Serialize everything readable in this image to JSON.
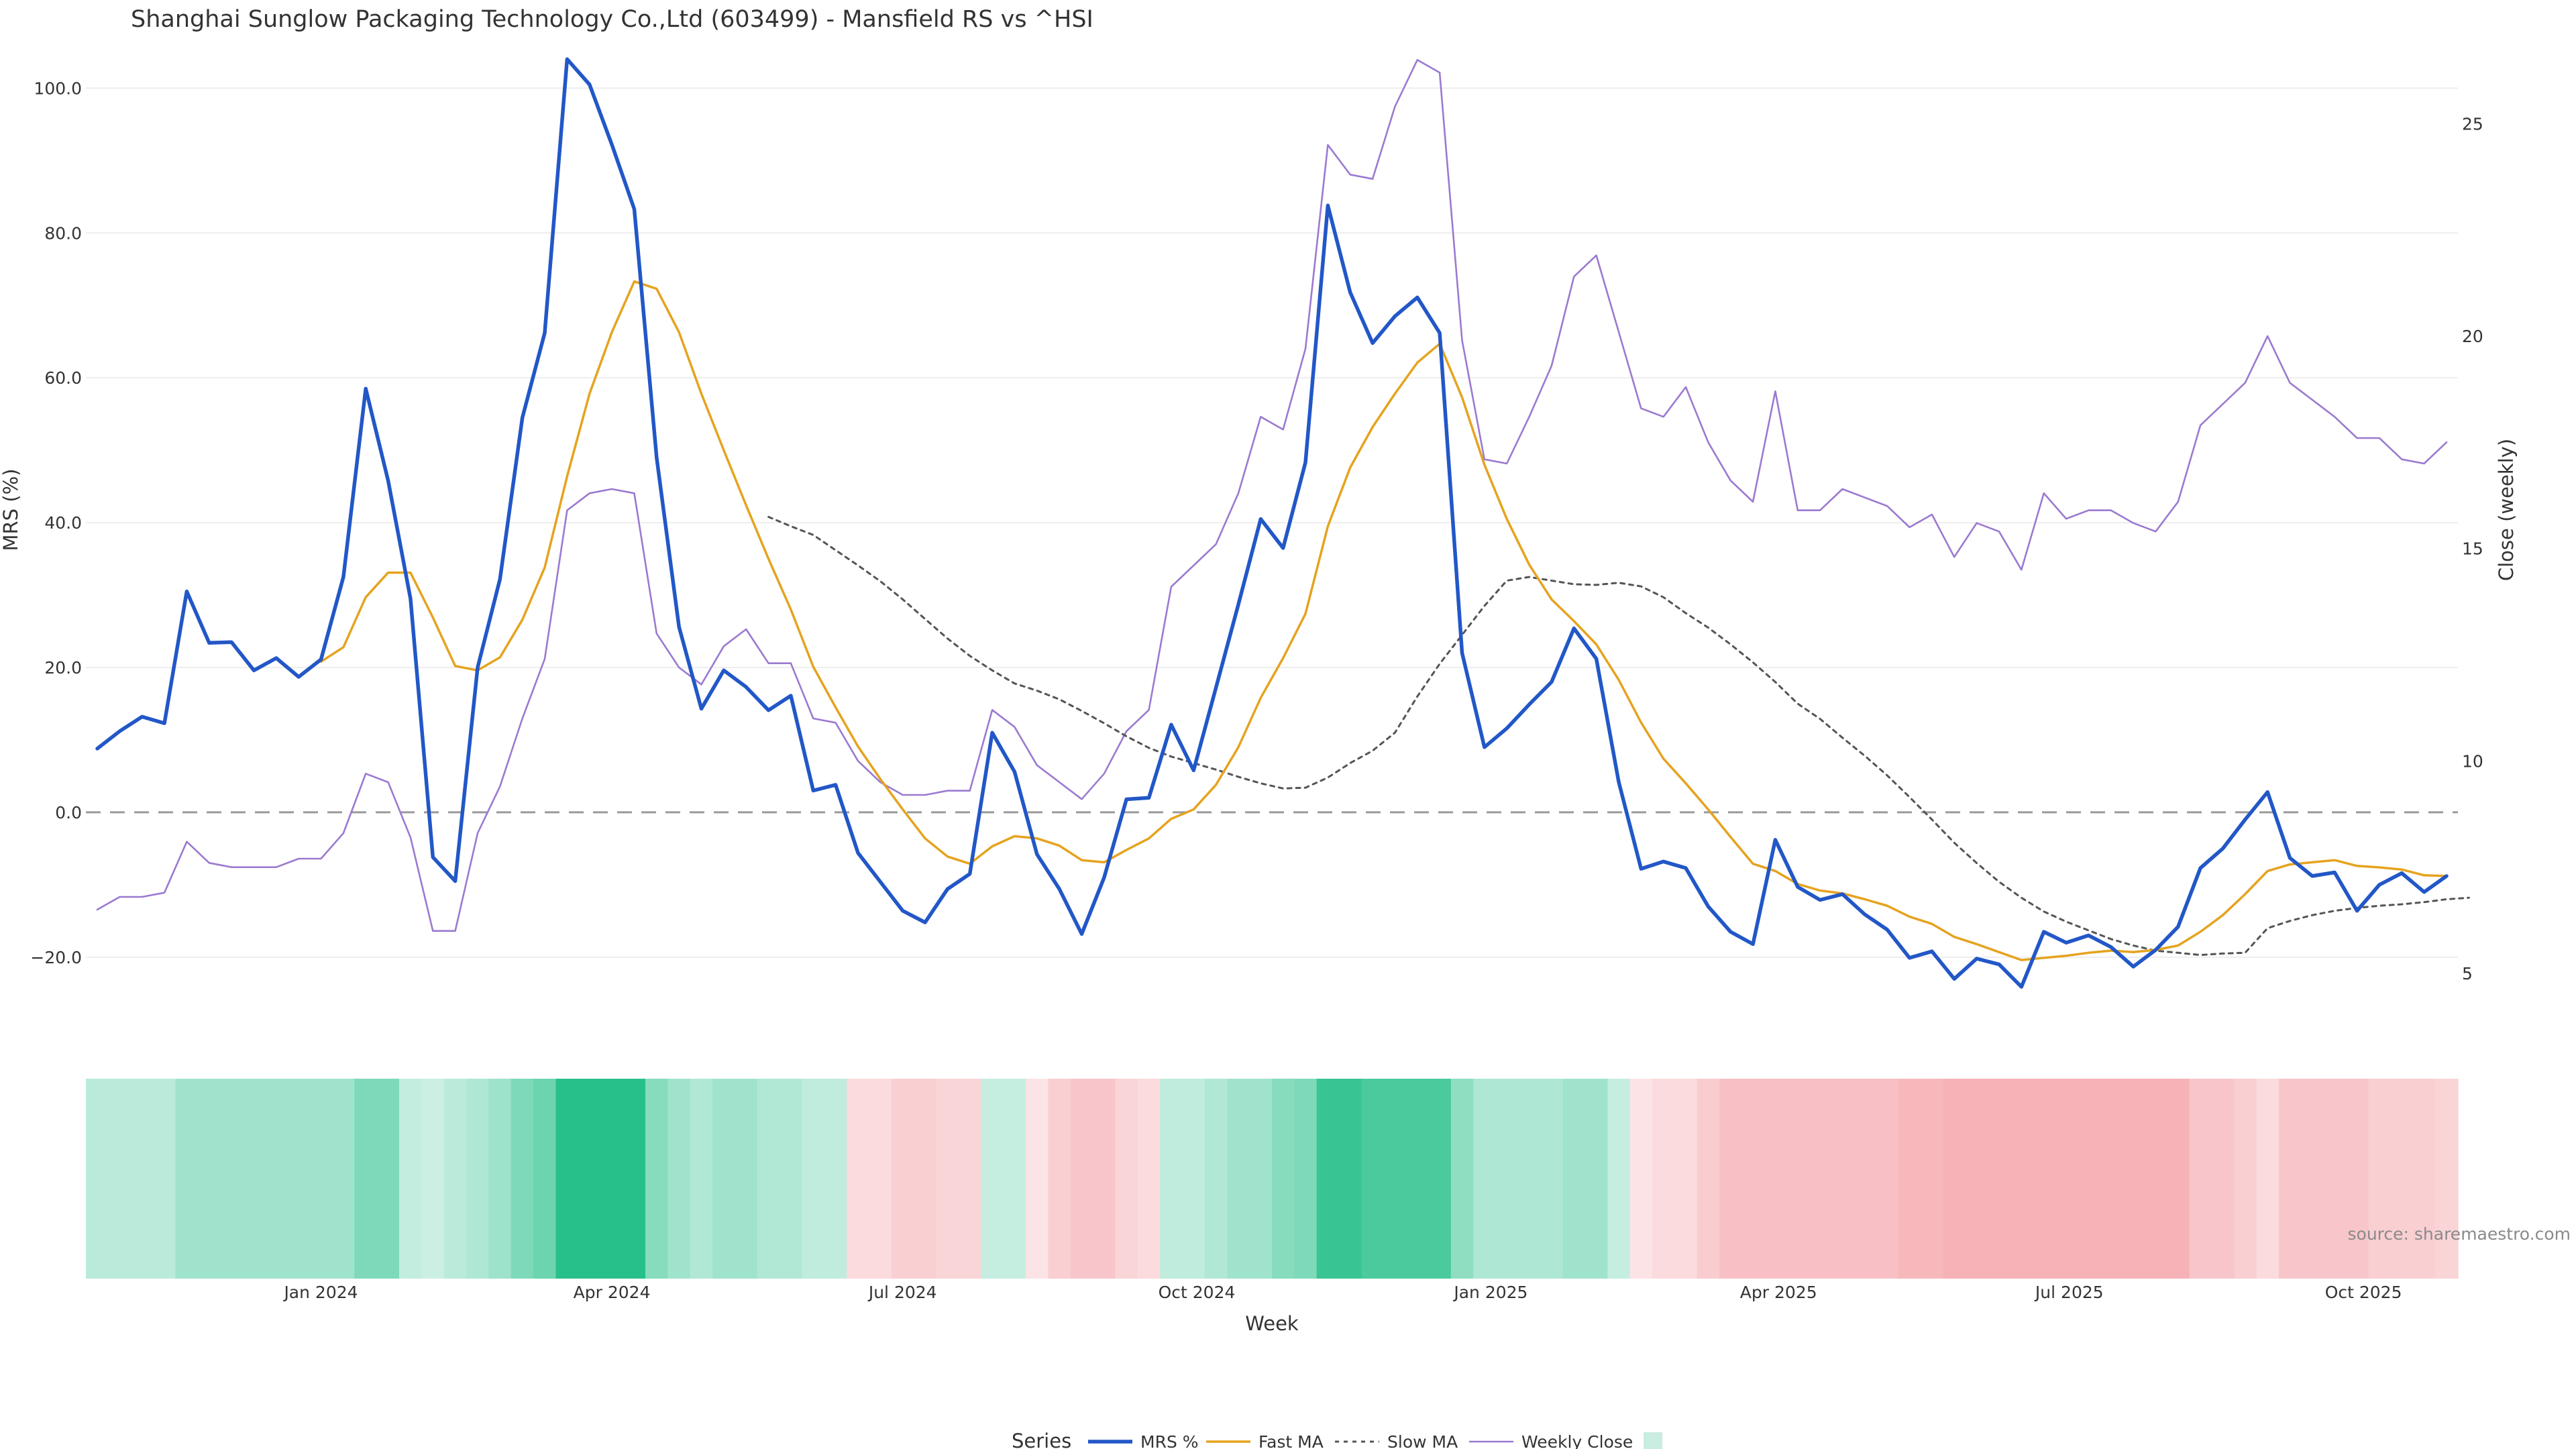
{
  "chart_data": {
    "type": "line",
    "title": "Shanghai Sunglow Packaging Technology Co.,Ltd (603499) - Mansfield RS vs ^HSI",
    "xlabel": "Week",
    "ylabel_left": "MRS (%)",
    "ylabel_right": "Close (weekly)",
    "source": "source: sharemaestro.com",
    "legend_title": "Series",
    "legend_position": "bottom-center",
    "x_start": "2023-10-23",
    "x_step_days": 7,
    "x_ticks": [
      "Jan 2024",
      "Apr 2024",
      "Jul 2024",
      "Oct 2024",
      "Jan 2025",
      "Apr 2025",
      "Jul 2025",
      "Oct 2025"
    ],
    "y_left": {
      "range": [
        -24,
        108
      ],
      "ticks": [
        "100.0",
        "80.0",
        "60.0",
        "40.0",
        "20.0",
        "0.0",
        "−20.0"
      ],
      "tick_values": [
        100,
        80,
        60,
        40,
        20,
        0,
        -20
      ]
    },
    "y_right": {
      "range": [
        4.7,
        27.2
      ],
      "ticks": [
        "5",
        "10",
        "15",
        "20",
        "25"
      ],
      "tick_values": [
        5,
        10,
        15,
        20,
        25
      ]
    },
    "zero_line": true,
    "grid": true,
    "colors": {
      "mrs": "#2257c7",
      "fast": "#e5a31f",
      "slow": "#555555",
      "close": "#9b7ad0",
      "pos": "#27c08a",
      "neg": "#f5a9ae"
    },
    "series": [
      {
        "name": "MRS %",
        "axis": "left",
        "style": "solid-thick",
        "values": [
          8.8,
          11.2,
          13.2,
          12.3,
          30.5,
          23.4,
          23.5,
          19.6,
          21.3,
          18.7,
          21.1,
          32.5,
          58.5,
          45.8,
          29.5,
          -6.2,
          -9.5,
          20.0,
          32.2,
          54.5,
          66.2,
          104.0,
          100.5,
          92.2,
          83.3,
          49.0,
          25.6,
          14.3,
          19.6,
          17.3,
          14.1,
          16.1,
          3.0,
          3.8,
          -5.6,
          -9.6,
          -13.6,
          -15.2,
          -10.6,
          -8.5,
          11.0,
          5.6,
          -5.8,
          -10.6,
          -16.8,
          -9.0,
          1.8,
          2.0,
          12.1,
          5.8,
          17.2,
          28.7,
          40.5,
          36.5,
          48.3,
          83.8,
          71.8,
          64.8,
          68.5,
          71.1,
          66.2,
          22.0,
          9.0,
          11.6,
          14.9,
          18.0,
          25.4,
          21.2,
          4.2,
          -7.8,
          -6.8,
          -7.7,
          -13.0,
          -16.5,
          -18.2,
          -3.8,
          -10.3,
          -12.1,
          -11.3,
          -14.1,
          -16.2,
          -20.1,
          -19.2,
          -23.0,
          -20.2,
          -21.0,
          -24.1,
          -16.5,
          -18.0,
          -17.0,
          -18.6,
          -21.3,
          -19.0,
          -15.8,
          -7.7,
          -5.0,
          -1.0,
          2.8,
          -6.3,
          -8.8,
          -8.3,
          -13.6,
          -10.0,
          -8.4,
          -11.0,
          -8.8
        ]
      },
      {
        "name": "Fast MA",
        "axis": "left",
        "style": "solid",
        "values": [
          null,
          null,
          null,
          null,
          null,
          null,
          null,
          null,
          null,
          null,
          20.8,
          22.8,
          29.7,
          33.1,
          33.1,
          26.9,
          20.2,
          19.6,
          21.4,
          26.6,
          33.8,
          46.4,
          57.8,
          66.3,
          73.3,
          72.3,
          66.3,
          57.8,
          50.0,
          42.4,
          35.0,
          28.0,
          20.1,
          14.5,
          9.1,
          4.6,
          0.4,
          -3.6,
          -6.1,
          -7.1,
          -4.7,
          -3.3,
          -3.6,
          -4.6,
          -6.6,
          -6.9,
          -5.2,
          -3.6,
          -0.9,
          0.4,
          3.8,
          9.0,
          15.8,
          21.3,
          27.4,
          39.5,
          47.6,
          53.2,
          57.8,
          62.1,
          64.7,
          57.3,
          48.0,
          40.5,
          34.2,
          29.4,
          26.4,
          23.2,
          18.3,
          12.4,
          7.4,
          4.0,
          0.4,
          -3.4,
          -7.1,
          -8.1,
          -9.9,
          -10.8,
          -11.2,
          -12.0,
          -12.9,
          -14.4,
          -15.4,
          -17.2,
          -18.2,
          -19.3,
          -20.4,
          -20.1,
          -19.8,
          -19.4,
          -19.1,
          -19.3,
          -19.0,
          -18.4,
          -16.5,
          -14.2,
          -11.3,
          -8.1,
          -7.2,
          -6.9,
          -6.6,
          -7.4,
          -7.6,
          -7.9,
          -8.7,
          -8.8
        ]
      },
      {
        "name": "Slow MA",
        "axis": "left",
        "style": "dotted",
        "values": [
          null,
          null,
          null,
          null,
          null,
          null,
          null,
          null,
          null,
          null,
          null,
          null,
          null,
          null,
          null,
          null,
          null,
          null,
          null,
          null,
          null,
          null,
          null,
          null,
          null,
          null,
          null,
          null,
          null,
          null,
          40.8,
          39.5,
          38.3,
          36.2,
          34.1,
          31.9,
          29.4,
          26.7,
          24.0,
          21.6,
          19.6,
          17.8,
          16.8,
          15.6,
          14.0,
          12.3,
          10.5,
          8.9,
          7.7,
          6.8,
          5.9,
          4.9,
          4.0,
          3.3,
          3.4,
          4.8,
          6.8,
          8.5,
          11.0,
          16.0,
          20.5,
          24.5,
          28.5,
          32.0,
          32.5,
          32.0,
          31.5,
          31.4,
          31.7,
          31.2,
          29.7,
          27.5,
          25.5,
          23.2,
          20.7,
          18.0,
          15.0,
          12.9,
          10.3,
          7.8,
          5.1,
          2.1,
          -1.0,
          -4.2,
          -7.0,
          -9.6,
          -11.8,
          -13.7,
          -15.1,
          -16.3,
          -17.5,
          -18.4,
          -19.1,
          -19.4,
          -19.7,
          -19.5,
          -19.4,
          -16.0,
          -15.0,
          -14.2,
          -13.6,
          -13.2,
          -12.9,
          -12.7,
          -12.4,
          -12.0,
          -11.8
        ]
      },
      {
        "name": "Weekly Close",
        "axis": "right",
        "style": "solid-thin",
        "values": [
          6.5,
          6.8,
          6.8,
          6.9,
          8.1,
          7.6,
          7.5,
          7.5,
          7.5,
          7.7,
          7.7,
          8.3,
          9.7,
          9.5,
          8.2,
          6.0,
          6.0,
          8.3,
          9.4,
          11.0,
          12.4,
          15.9,
          16.3,
          16.4,
          16.3,
          13.0,
          12.2,
          11.8,
          12.7,
          13.1,
          12.3,
          12.3,
          11.0,
          10.9,
          10.0,
          9.5,
          9.2,
          9.2,
          9.3,
          9.3,
          11.2,
          10.8,
          9.9,
          9.5,
          9.1,
          9.7,
          10.7,
          11.2,
          14.1,
          14.6,
          15.1,
          16.3,
          18.1,
          17.8,
          19.7,
          24.5,
          23.8,
          23.7,
          25.4,
          26.5,
          26.2,
          19.9,
          17.1,
          17.0,
          18.1,
          19.3,
          21.4,
          21.9,
          20.1,
          18.3,
          18.1,
          18.8,
          17.5,
          16.6,
          16.1,
          18.7,
          15.9,
          15.9,
          16.4,
          16.2,
          16.0,
          15.5,
          15.8,
          14.8,
          15.6,
          15.4,
          14.5,
          16.3,
          15.7,
          15.9,
          15.9,
          15.6,
          15.4,
          16.1,
          17.9,
          18.4,
          18.9,
          20.0,
          18.9,
          18.5,
          18.1,
          17.6,
          17.6,
          17.1,
          17.0,
          17.5
        ]
      },
      {
        "name": "",
        "axis": "none",
        "style": "heatmap",
        "values": []
      }
    ],
    "heatmap_strip": {
      "description_scale": "per-week MRS shading",
      "values": [
        15,
        15,
        15,
        15,
        30,
        30,
        30,
        30,
        30,
        30,
        30,
        30,
        50,
        50,
        10,
        5,
        15,
        22,
        32,
        50,
        60,
        100,
        100,
        100,
        100,
        45,
        30,
        20,
        30,
        30,
        20,
        20,
        12,
        12,
        -8,
        -8,
        -12,
        -12,
        -10,
        -10,
        8,
        8,
        -5,
        -12,
        -15,
        -15,
        -10,
        -8,
        12,
        12,
        20,
        30,
        30,
        45,
        50,
        90,
        90,
        80,
        80,
        80,
        80,
        40,
        22,
        22,
        22,
        22,
        30,
        30,
        8,
        -5,
        -8,
        -8,
        -13,
        -17,
        -17,
        -17,
        -17,
        -17,
        -17,
        -17,
        -17,
        -20,
        -20,
        -22,
        -22,
        -22,
        -22,
        -22,
        -22,
        -22,
        -22,
        -22,
        -22,
        -22,
        -15,
        -15,
        -12,
        -8,
        -15,
        -15,
        -15,
        -15,
        -12,
        -12,
        -12,
        -10
      ]
    }
  }
}
